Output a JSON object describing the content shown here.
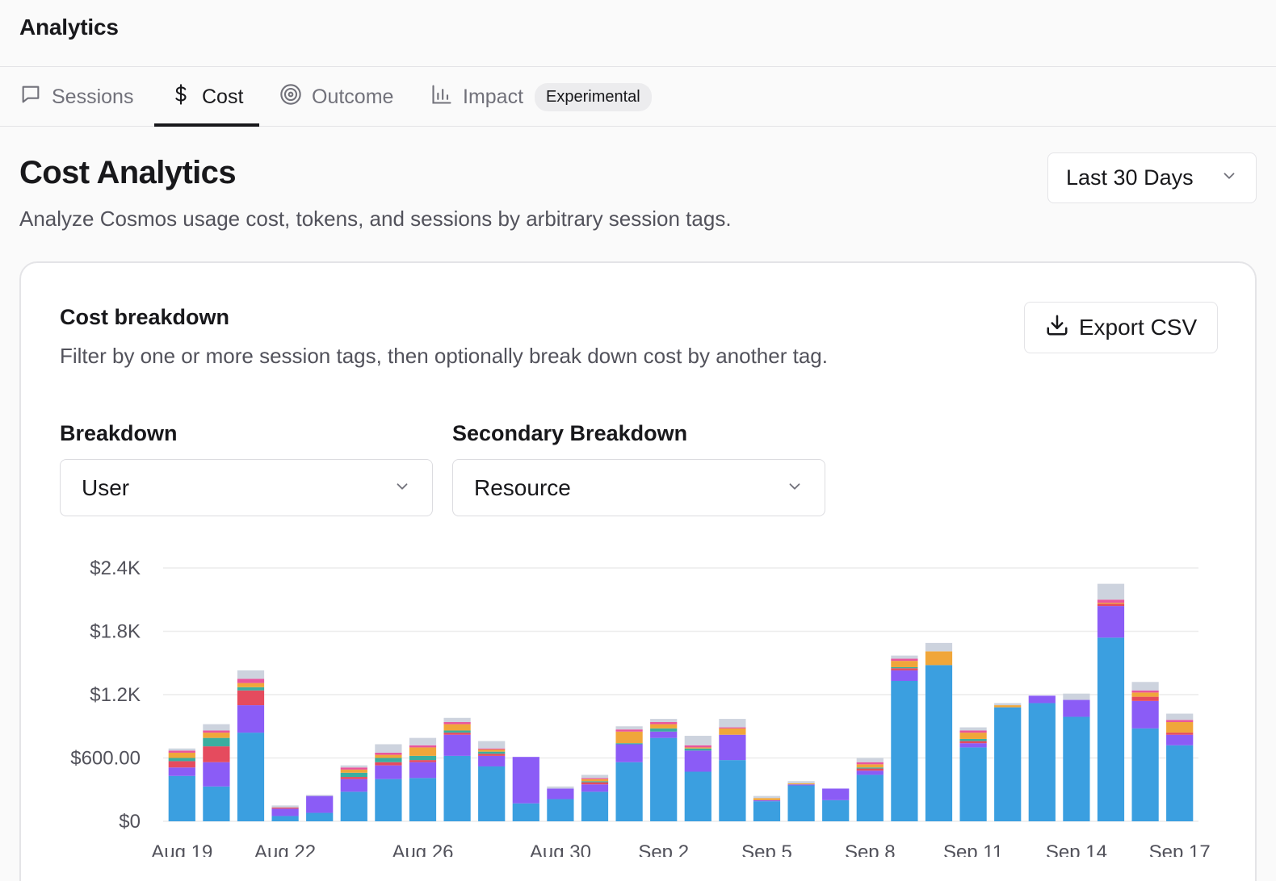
{
  "app": {
    "title": "Analytics"
  },
  "tabs": [
    {
      "label": "Sessions",
      "icon": "chat-bubble-icon",
      "active": false
    },
    {
      "label": "Cost",
      "icon": "dollar-icon",
      "active": true
    },
    {
      "label": "Outcome",
      "icon": "target-icon",
      "active": false
    },
    {
      "label": "Impact",
      "icon": "bar-chart-icon",
      "active": false,
      "badge": "Experimental"
    }
  ],
  "header": {
    "title": "Cost Analytics",
    "subtitle": "Analyze Cosmos usage cost, tokens, and sessions by arbitrary session tags.",
    "range": "Last 30 Days"
  },
  "card": {
    "title": "Cost breakdown",
    "description": "Filter by one or more session tags, then optionally break down cost by another tag.",
    "export_label": "Export CSV",
    "breakdown_label": "Breakdown",
    "breakdown_value": "User",
    "secondary_label": "Secondary Breakdown",
    "secondary_value": "Resource"
  },
  "colors": {
    "blue": "#3b9fe0",
    "purple": "#8b5cf6",
    "red": "#e54b5e",
    "teal": "#3aaea0",
    "orange": "#f0a63a",
    "pink": "#e9559c",
    "gray": "#cdd3de",
    "gridline": "#ececec"
  },
  "chart_data": {
    "type": "bar",
    "stacked": true,
    "y_ticks": [
      "$0",
      "$600.00",
      "$1.2K",
      "$1.8K",
      "$2.4K"
    ],
    "ylim": [
      0,
      2400
    ],
    "x_tick_labels": [
      "Aug 19",
      "Aug 22",
      "Aug 26",
      "Aug 30",
      "Sep 2",
      "Sep 5",
      "Sep 8",
      "Sep 11",
      "Sep 14",
      "Sep 17"
    ],
    "categories": [
      "Aug 19",
      "Aug 20",
      "Aug 21",
      "Aug 22",
      "Aug 23",
      "Aug 24",
      "Aug 25",
      "Aug 26",
      "Aug 27",
      "Aug 28",
      "Aug 29",
      "Aug 30",
      "Aug 31",
      "Sep 1",
      "Sep 2",
      "Sep 3",
      "Sep 4",
      "Sep 5",
      "Sep 6",
      "Sep 7",
      "Sep 8",
      "Sep 9",
      "Sep 10",
      "Sep 11",
      "Sep 12",
      "Sep 13",
      "Sep 14",
      "Sep 15",
      "Sep 16",
      "Sep 17"
    ],
    "grid": true,
    "legend": "none",
    "series": [
      {
        "color": "blue",
        "values": [
          430,
          330,
          840,
          50,
          80,
          280,
          400,
          410,
          620,
          520,
          170,
          210,
          280,
          560,
          790,
          470,
          580,
          190,
          340,
          200,
          440,
          1330,
          1480,
          700,
          1080,
          1120,
          990,
          1740,
          880,
          720
        ]
      },
      {
        "color": "purple",
        "values": [
          80,
          230,
          260,
          70,
          160,
          120,
          130,
          150,
          200,
          100,
          440,
          100,
          70,
          170,
          60,
          200,
          240,
          10,
          10,
          110,
          40,
          100,
          0,
          40,
          0,
          70,
          160,
          300,
          260,
          100
        ]
      },
      {
        "color": "red",
        "values": [
          60,
          150,
          140,
          10,
          0,
          20,
          30,
          20,
          20,
          20,
          0,
          0,
          20,
          0,
          0,
          0,
          0,
          0,
          0,
          0,
          20,
          20,
          0,
          20,
          0,
          0,
          0,
          20,
          40,
          20
        ]
      },
      {
        "color": "teal",
        "values": [
          30,
          80,
          30,
          0,
          0,
          40,
          40,
          40,
          20,
          20,
          0,
          0,
          10,
          10,
          30,
          20,
          0,
          0,
          0,
          0,
          10,
          10,
          0,
          20,
          0,
          0,
          0,
          0,
          0,
          0
        ]
      },
      {
        "color": "orange",
        "values": [
          50,
          50,
          40,
          0,
          0,
          30,
          30,
          80,
          60,
          20,
          0,
          0,
          20,
          110,
          40,
          10,
          60,
          20,
          10,
          0,
          30,
          60,
          130,
          60,
          20,
          0,
          0,
          10,
          40,
          100
        ]
      },
      {
        "color": "pink",
        "values": [
          20,
          20,
          40,
          0,
          0,
          20,
          20,
          20,
          20,
          10,
          0,
          0,
          10,
          20,
          20,
          20,
          10,
          0,
          0,
          0,
          20,
          20,
          0,
          20,
          0,
          0,
          0,
          30,
          20,
          20
        ]
      },
      {
        "color": "gray",
        "values": [
          20,
          60,
          80,
          20,
          10,
          20,
          80,
          70,
          40,
          70,
          0,
          20,
          30,
          30,
          30,
          90,
          80,
          20,
          20,
          0,
          40,
          30,
          80,
          30,
          20,
          0,
          60,
          150,
          80,
          60
        ]
      }
    ]
  }
}
